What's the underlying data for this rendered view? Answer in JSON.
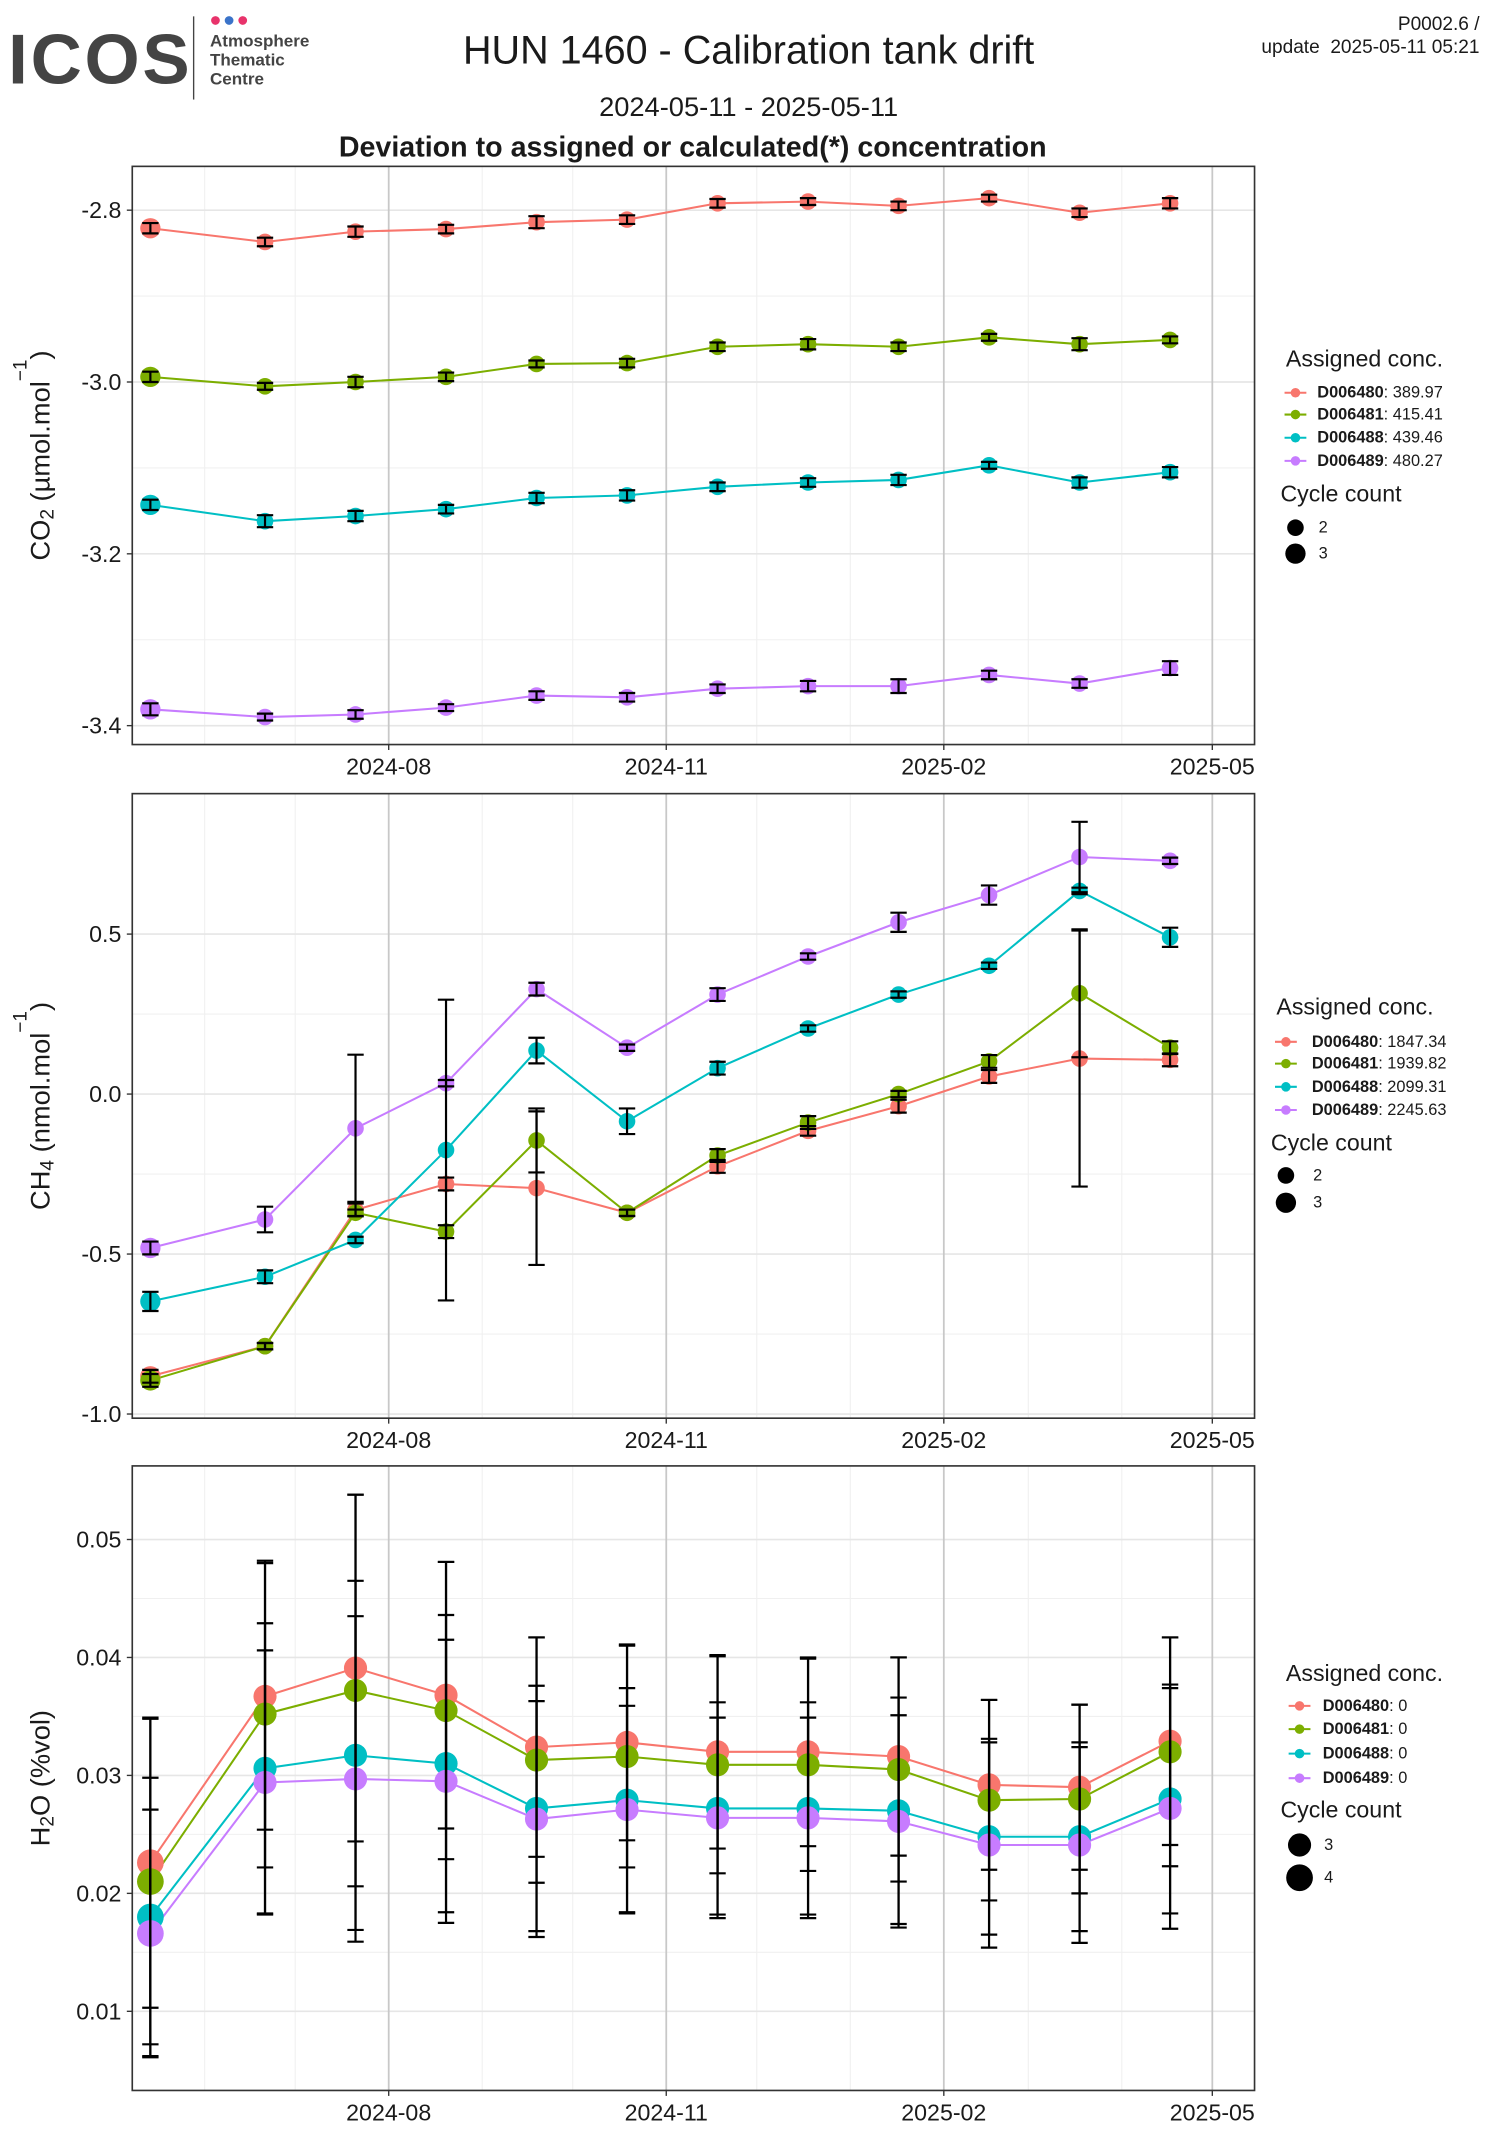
{
  "header": {
    "logo": "ICOS",
    "logo_lines": [
      "Atmosphere",
      "Thematic",
      "Centre"
    ],
    "title": "HUN 1460 - Calibration tank drift",
    "version": "P0002.6 /",
    "update": "update  2025-05-11 05:21",
    "period": "2024-05-11 - 2025-05-11",
    "subtitle": "Deviation to assigned or calculated(*) concentration"
  },
  "chart_data": [
    {
      "type": "line",
      "ylabel": [
        "CO",
        "2",
        " (µmol.mol",
        "−1",
        ")"
      ],
      "x": [
        "2024-05-14",
        "2024-06-21",
        "2024-07-21",
        "2024-08-20",
        "2024-09-19",
        "2024-10-19",
        "2024-11-18",
        "2024-12-18",
        "2025-01-17",
        "2025-02-16",
        "2025-03-18",
        "2025-04-17"
      ],
      "xlim": [
        "2024-05-08",
        "2025-05-15"
      ],
      "xticks": [
        "2024-08",
        "2024-11",
        "2025-02",
        "2025-05"
      ],
      "ylim": [
        -3.422,
        -2.749
      ],
      "yticks": [
        -2.8,
        {
          "value": -3,
          "label": "-3.0"
        },
        -3.2,
        -3.4
      ],
      "grid": true,
      "legend": {
        "title": "Assigned conc.",
        "size_title": "Cycle count",
        "size_values": [
          2,
          3
        ]
      },
      "series": [
        {
          "name": "D006480",
          "assigned": ": 389.97",
          "color": "#F8766D",
          "values": [
            -2.821,
            -2.837,
            -2.825,
            -2.822,
            -2.814,
            -2.811,
            -2.792,
            -2.79,
            -2.795,
            -2.786,
            -2.803,
            -2.792
          ],
          "errors": [
            0.006,
            0.005,
            0.006,
            0.005,
            0.007,
            0.005,
            0.005,
            0.004,
            0.005,
            0.004,
            0.005,
            0.006
          ],
          "sizes": [
            3,
            2,
            2,
            2,
            2,
            2,
            2,
            2,
            2,
            2,
            2,
            2
          ]
        },
        {
          "name": "D006481",
          "assigned": ": 415.41",
          "color": "#7CAE00",
          "values": [
            -2.994,
            -3.005,
            -3.0,
            -2.994,
            -2.979,
            -2.978,
            -2.959,
            -2.956,
            -2.959,
            -2.948,
            -2.956,
            -2.951
          ],
          "errors": [
            0.006,
            0.004,
            0.006,
            0.005,
            0.004,
            0.005,
            0.005,
            0.006,
            0.005,
            0.004,
            0.007,
            0.004
          ],
          "sizes": [
            3,
            2,
            2,
            2,
            2,
            2,
            2,
            2,
            2,
            2,
            2,
            2
          ]
        },
        {
          "name": "D006488",
          "assigned": ": 439.46",
          "color": "#00BFC4",
          "values": [
            -3.143,
            -3.162,
            -3.156,
            -3.148,
            -3.135,
            -3.132,
            -3.122,
            -3.117,
            -3.114,
            -3.097,
            -3.117,
            -3.105
          ],
          "errors": [
            0.006,
            0.007,
            0.006,
            0.005,
            0.006,
            0.006,
            0.005,
            0.005,
            0.006,
            0.004,
            0.006,
            0.006
          ],
          "sizes": [
            3,
            2,
            2,
            2,
            2,
            2,
            2,
            2,
            2,
            2,
            2,
            2
          ]
        },
        {
          "name": "D006489",
          "assigned": ": 480.27",
          "color": "#C77CFF",
          "values": [
            -3.381,
            -3.39,
            -3.387,
            -3.379,
            -3.365,
            -3.367,
            -3.357,
            -3.354,
            -3.354,
            -3.341,
            -3.351,
            -3.333
          ],
          "errors": [
            0.007,
            0.004,
            0.005,
            0.004,
            0.005,
            0.005,
            0.005,
            0.006,
            0.008,
            0.005,
            0.005,
            0.008
          ],
          "sizes": [
            3,
            2,
            2,
            2,
            2,
            2,
            2,
            2,
            2,
            2,
            2,
            2
          ]
        }
      ]
    },
    {
      "type": "line",
      "ylabel": [
        "CH",
        "4",
        " (nmol.mol",
        "−1",
        ")"
      ],
      "x": [
        "2024-05-14",
        "2024-06-21",
        "2024-07-21",
        "2024-08-20",
        "2024-09-19",
        "2024-10-19",
        "2024-11-18",
        "2024-12-18",
        "2025-01-17",
        "2025-02-16",
        "2025-03-18",
        "2025-04-17"
      ],
      "xlim": [
        "2024-05-08",
        "2025-05-15"
      ],
      "xticks": [
        "2024-08",
        "2024-11",
        "2025-02",
        "2025-05"
      ],
      "ylim": [
        -1.013,
        0.939
      ],
      "yticks": [
        0.5,
        {
          "value": 0,
          "label": "0.0"
        },
        -0.5,
        {
          "value": -1,
          "label": "-1.0"
        }
      ],
      "grid": true,
      "legend": {
        "title": "Assigned conc.",
        "size_title": "Cycle count",
        "size_values": [
          2,
          3
        ]
      },
      "series": [
        {
          "name": "D006480",
          "assigned": ": 1847.34",
          "color": "#F8766D",
          "values": [
            -0.882,
            -0.788,
            -0.362,
            -0.281,
            -0.294,
            -0.371,
            -0.226,
            -0.115,
            -0.038,
            0.055,
            0.111,
            0.107
          ],
          "errors": [
            0.02,
            0.01,
            0.02,
            0.02,
            0.24,
            0.01,
            0.02,
            0.015,
            0.02,
            0.02,
            0.4,
            0.02
          ],
          "sizes": [
            3,
            2,
            2,
            2,
            2,
            2,
            2,
            2,
            2,
            2,
            2,
            2
          ]
        },
        {
          "name": "D006481",
          "assigned": ": 1939.82",
          "color": "#7CAE00",
          "values": [
            -0.895,
            -0.788,
            -0.371,
            -0.43,
            -0.145,
            -0.371,
            -0.192,
            -0.089,
            0.0,
            0.102,
            0.315,
            0.145
          ],
          "errors": [
            0.02,
            0.01,
            0.01,
            0.02,
            0.1,
            0.01,
            0.02,
            0.02,
            0.01,
            0.02,
            0.2,
            0.02
          ],
          "sizes": [
            3,
            2,
            2,
            2,
            2,
            2,
            2,
            2,
            2,
            2,
            2,
            2
          ]
        },
        {
          "name": "D006488",
          "assigned": ": 2099.31",
          "color": "#00BFC4",
          "values": [
            -0.648,
            -0.571,
            -0.456,
            -0.175,
            0.136,
            -0.085,
            0.081,
            0.205,
            0.311,
            0.401,
            0.635,
            0.49
          ],
          "errors": [
            0.03,
            0.02,
            0.01,
            0.47,
            0.04,
            0.04,
            0.02,
            0.01,
            0.01,
            0.01,
            0.01,
            0.03
          ],
          "sizes": [
            3,
            2,
            2,
            2,
            2,
            2,
            2,
            2,
            2,
            2,
            2,
            2
          ]
        },
        {
          "name": "D006489",
          "assigned": ": 2245.63",
          "color": "#C77CFF",
          "values": [
            -0.481,
            -0.392,
            -0.107,
            0.034,
            0.328,
            0.145,
            0.311,
            0.43,
            0.537,
            0.622,
            0.741,
            0.729
          ],
          "errors": [
            0.02,
            0.04,
            0.23,
            0.01,
            0.02,
            0.01,
            0.02,
            0.01,
            0.03,
            0.03,
            0.11,
            0.01
          ],
          "sizes": [
            3,
            2,
            2,
            2,
            2,
            2,
            2,
            2,
            2,
            2,
            2,
            2
          ]
        }
      ]
    },
    {
      "type": "line",
      "ylabel": [
        "H",
        "2",
        "O (%vol)"
      ],
      "x": [
        "2024-05-14",
        "2024-06-21",
        "2024-07-21",
        "2024-08-20",
        "2024-09-19",
        "2024-10-19",
        "2024-11-18",
        "2024-12-18",
        "2025-01-17",
        "2025-02-16",
        "2025-03-18",
        "2025-04-17"
      ],
      "xlim": [
        "2024-05-08",
        "2025-05-15"
      ],
      "xticks": [
        "2024-08",
        "2024-11",
        "2025-02",
        "2025-05"
      ],
      "ylim": [
        0.00329,
        0.05624
      ],
      "yticks": [
        0.05,
        0.04,
        0.03,
        0.02,
        0.01
      ],
      "grid": true,
      "legend": {
        "title": "Assigned conc.",
        "size_title": "Cycle count",
        "size_values": [
          3,
          4
        ]
      },
      "series": [
        {
          "name": "D006480",
          "assigned": ": 0",
          "color": "#F8766D",
          "values": [
            0.0226,
            0.0367,
            0.0391,
            0.0368,
            0.0324,
            0.0328,
            0.032,
            0.032,
            0.0316,
            0.0292,
            0.029,
            0.0329
          ],
          "errors": [
            0.0123,
            0.0113,
            0.0147,
            0.0113,
            0.0093,
            0.0083,
            0.0082,
            0.008,
            0.0084,
            0.0072,
            0.007,
            0.0088
          ],
          "sizes": [
            4,
            3,
            3,
            3,
            3,
            3,
            3,
            3,
            3,
            3,
            3,
            3
          ]
        },
        {
          "name": "D006481",
          "assigned": ": 0",
          "color": "#7CAE00",
          "values": [
            0.021,
            0.0352,
            0.0372,
            0.0355,
            0.0313,
            0.0316,
            0.0309,
            0.0309,
            0.0305,
            0.0279,
            0.028,
            0.032
          ],
          "errors": [
            0.0138,
            0.013,
            0.0166,
            0.0126,
            0.0104,
            0.0094,
            0.0092,
            0.009,
            0.0095,
            0.0085,
            0.008,
            0.0097
          ],
          "sizes": [
            4,
            3,
            3,
            3,
            3,
            3,
            3,
            3,
            3,
            3,
            3,
            3
          ]
        },
        {
          "name": "D006488",
          "assigned": ": 0",
          "color": "#00BFC4",
          "values": [
            0.018,
            0.0306,
            0.0317,
            0.031,
            0.0272,
            0.0279,
            0.0272,
            0.0272,
            0.027,
            0.0248,
            0.0248,
            0.028
          ],
          "errors": [
            0.0118,
            0.0123,
            0.0148,
            0.0126,
            0.0104,
            0.0095,
            0.009,
            0.009,
            0.0096,
            0.0083,
            0.008,
            0.0097
          ],
          "sizes": [
            4,
            3,
            3,
            3,
            3,
            3,
            3,
            3,
            3,
            3,
            3,
            3
          ]
        },
        {
          "name": "D006489",
          "assigned": ": 0",
          "color": "#C77CFF",
          "values": [
            0.0166,
            0.0294,
            0.0297,
            0.0295,
            0.0263,
            0.0271,
            0.0264,
            0.0264,
            0.0261,
            0.0241,
            0.0241,
            0.0272
          ],
          "errors": [
            0.0105,
            0.0112,
            0.0138,
            0.012,
            0.01,
            0.0088,
            0.0085,
            0.0085,
            0.009,
            0.0087,
            0.0083,
            0.0102
          ],
          "sizes": [
            4,
            3,
            3,
            3,
            3,
            3,
            3,
            3,
            3,
            3,
            3,
            3
          ]
        }
      ]
    }
  ]
}
